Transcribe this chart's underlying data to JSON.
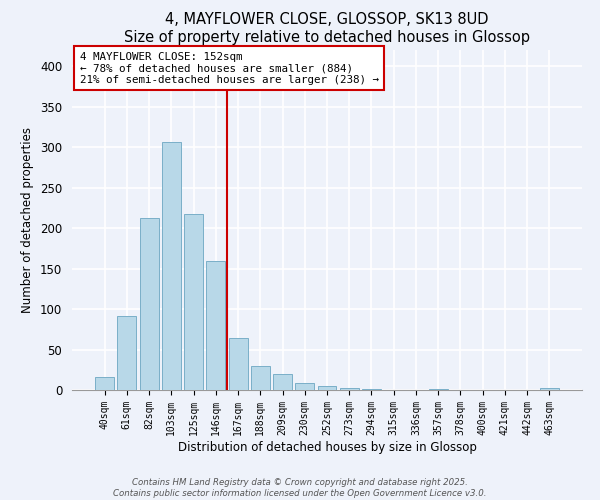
{
  "title": "4, MAYFLOWER CLOSE, GLOSSOP, SK13 8UD",
  "subtitle": "Size of property relative to detached houses in Glossop",
  "xlabel": "Distribution of detached houses by size in Glossop",
  "ylabel": "Number of detached properties",
  "bar_labels": [
    "40sqm",
    "61sqm",
    "82sqm",
    "103sqm",
    "125sqm",
    "146sqm",
    "167sqm",
    "188sqm",
    "209sqm",
    "230sqm",
    "252sqm",
    "273sqm",
    "294sqm",
    "315sqm",
    "336sqm",
    "357sqm",
    "378sqm",
    "400sqm",
    "421sqm",
    "442sqm",
    "463sqm"
  ],
  "bar_values": [
    16,
    91,
    212,
    306,
    218,
    159,
    64,
    30,
    20,
    9,
    5,
    2,
    1,
    0,
    0,
    1,
    0,
    0,
    0,
    0,
    3
  ],
  "bar_color": "#b8d8e8",
  "bar_edge_color": "#7aafc8",
  "vline_x": 5.5,
  "vline_color": "#cc0000",
  "annotation_text": "4 MAYFLOWER CLOSE: 152sqm\n← 78% of detached houses are smaller (884)\n21% of semi-detached houses are larger (238) →",
  "annotation_box_color": "#ffffff",
  "annotation_box_edge": "#cc0000",
  "ylim": [
    0,
    420
  ],
  "yticks": [
    0,
    50,
    100,
    150,
    200,
    250,
    300,
    350,
    400
  ],
  "bg_color": "#eef2fa",
  "footer1": "Contains HM Land Registry data © Crown copyright and database right 2025.",
  "footer2": "Contains public sector information licensed under the Open Government Licence v3.0."
}
